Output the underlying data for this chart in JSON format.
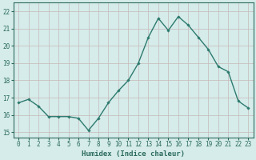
{
  "x": [
    0,
    1,
    2,
    3,
    4,
    5,
    6,
    7,
    8,
    9,
    10,
    11,
    12,
    13,
    14,
    15,
    16,
    17,
    18,
    19,
    20,
    21,
    22,
    23
  ],
  "y": [
    16.7,
    16.9,
    16.5,
    15.9,
    15.9,
    15.9,
    15.8,
    15.1,
    15.8,
    16.7,
    17.4,
    18.0,
    19.0,
    20.5,
    21.6,
    20.9,
    21.7,
    21.2,
    20.5,
    19.8,
    18.8,
    18.5,
    16.8,
    16.4
  ],
  "line_color": "#2d7a6e",
  "marker": "D",
  "marker_size": 1.8,
  "linewidth": 1.0,
  "xlabel": "Humidex (Indice chaleur)",
  "xlim": [
    -0.5,
    23.5
  ],
  "ylim": [
    14.7,
    22.5
  ],
  "yticks": [
    15,
    16,
    17,
    18,
    19,
    20,
    21,
    22
  ],
  "xticks": [
    0,
    1,
    2,
    3,
    4,
    5,
    6,
    7,
    8,
    9,
    10,
    11,
    12,
    13,
    14,
    15,
    16,
    17,
    18,
    19,
    20,
    21,
    22,
    23
  ],
  "bg_color": "#d5ecea",
  "grid_color": "#c8b8b8",
  "tick_color": "#2d6b5e",
  "label_color": "#2d6b5e",
  "xlabel_fontsize": 6.5,
  "tick_fontsize": 5.5
}
